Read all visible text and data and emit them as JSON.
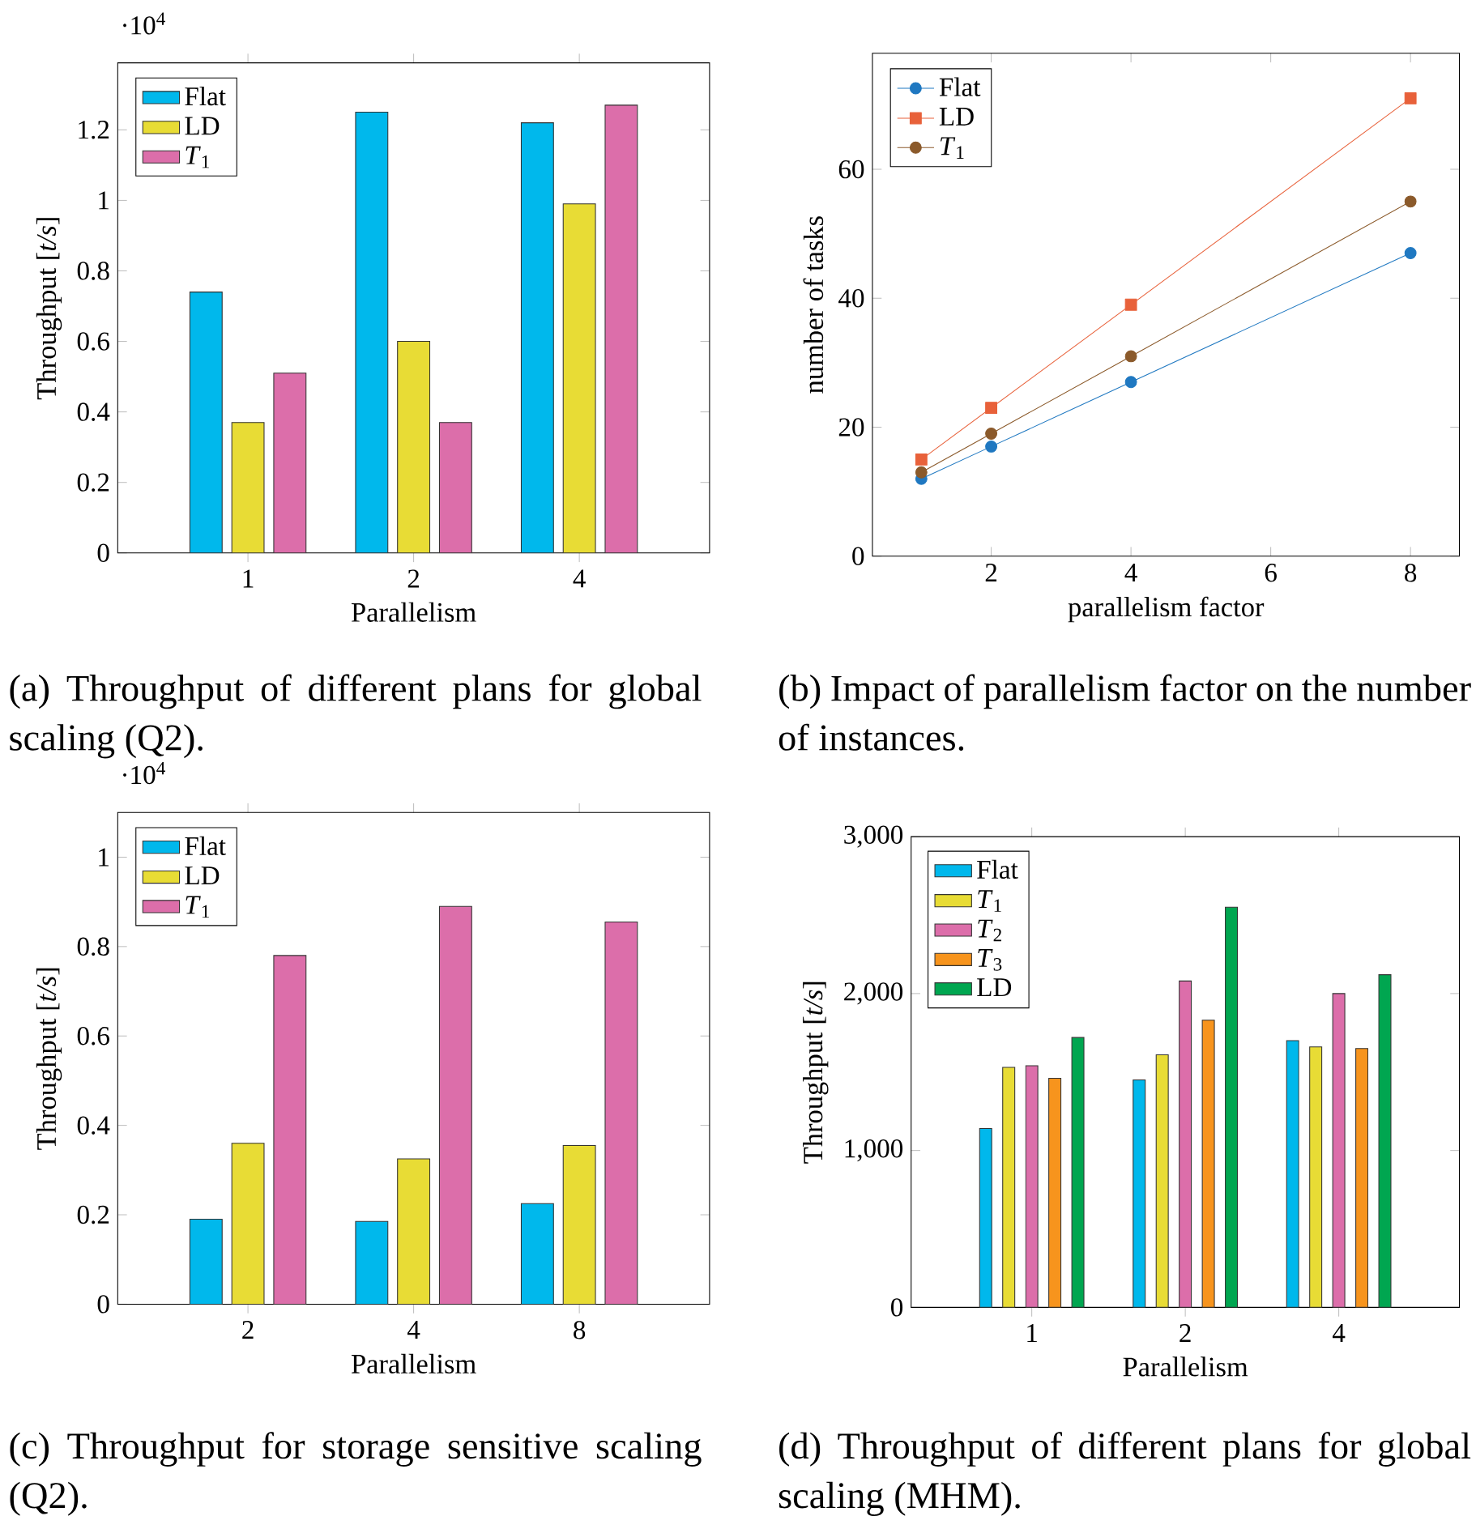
{
  "chart_data": [
    {
      "type": "bar",
      "xlabel": "Parallelism",
      "ylabel": "Throughput [*t/s*]",
      "categories": [
        "1",
        "2",
        "4"
      ],
      "legend": "top left",
      "ylim": [
        0,
        1.39
      ],
      "yticks": [
        0,
        0.2,
        0.4,
        0.6,
        0.8,
        1,
        1.2
      ],
      "annotations": [
        "(a) Throughput of different plans for global scaling (Q2).",
        "·10$^{4}$"
      ],
      "series": [
        {
          "name": "Flat",
          "color": "#00b8ec",
          "values": [
            0.74,
            1.25,
            1.22
          ]
        },
        {
          "name": "LD",
          "color": "#e8dc35",
          "values": [
            0.37,
            0.6,
            0.99
          ]
        },
        {
          "name": "*T*$_{1}$",
          "color": "#dc6eaa",
          "values": [
            0.51,
            0.37,
            1.27
          ]
        }
      ]
    },
    {
      "type": "line",
      "xlabel": "parallelism factor",
      "ylabel": "number of tasks",
      "x": [
        1,
        2,
        4,
        8
      ],
      "legend": "top left",
      "xlim": [
        0.3,
        8.7
      ],
      "xticks": [
        2,
        4,
        6,
        8
      ],
      "ylim": [
        0,
        78
      ],
      "yticks": [
        0,
        20,
        40,
        60
      ],
      "annotations": [
        "(b) Impact of parallelism factor on the number of instances."
      ],
      "series": [
        {
          "name": "Flat",
          "color": "#1f78c1",
          "marker": "circle",
          "values": [
            12,
            17,
            27,
            47
          ]
        },
        {
          "name": "LD",
          "color": "#e8613a",
          "marker": "square",
          "values": [
            15,
            23,
            39,
            71
          ]
        },
        {
          "name": "*T*$_{1}$",
          "color": "#8b5a2b",
          "marker": "circle",
          "values": [
            13,
            19,
            31,
            55
          ]
        }
      ]
    },
    {
      "type": "bar",
      "xlabel": "Parallelism",
      "ylabel": "Throughput [*t/s*]",
      "categories": [
        "2",
        "4",
        "8"
      ],
      "legend": "top left",
      "ylim": [
        0,
        1.1
      ],
      "yticks": [
        0,
        0.2,
        0.4,
        0.6,
        0.8,
        1
      ],
      "annotations": [
        "(c) Throughput for storage sensitive scaling (Q2).",
        "·10$^{4}$"
      ],
      "series": [
        {
          "name": "Flat",
          "color": "#00b8ec",
          "values": [
            0.19,
            0.185,
            0.225
          ]
        },
        {
          "name": "LD",
          "color": "#e8dc35",
          "values": [
            0.36,
            0.325,
            0.355
          ]
        },
        {
          "name": "*T*$_{1}$",
          "color": "#dc6eaa",
          "values": [
            0.78,
            0.89,
            0.855
          ]
        }
      ]
    },
    {
      "type": "bar",
      "xlabel": "Parallelism",
      "ylabel": "Throughput [*t/s*]",
      "categories": [
        "1",
        "2",
        "4"
      ],
      "legend": "top left",
      "ylim": [
        0,
        3000
      ],
      "yticks": [
        0,
        {
          "value": 1000,
          "label": "1,000"
        },
        {
          "value": 2000,
          "label": "2,000"
        },
        {
          "value": 3000,
          "label": "3,000"
        }
      ],
      "annotations": [
        "(d) Throughput of different plans for global scaling (MHM)."
      ],
      "series": [
        {
          "name": "Flat",
          "color": "#00b8ec",
          "values": [
            1140,
            1450,
            1700
          ]
        },
        {
          "name": "*T*$_{1}$",
          "color": "#e8dc35",
          "values": [
            1530,
            1610,
            1660
          ]
        },
        {
          "name": "*T*$_{2}$",
          "color": "#dc6eaa",
          "values": [
            1540,
            2080,
            2000
          ]
        },
        {
          "name": "*T*$_{3}$",
          "color": "#f7941d",
          "values": [
            1460,
            1830,
            1650
          ]
        },
        {
          "name": "LD",
          "color": "#00a650",
          "values": [
            1720,
            2550,
            2120
          ]
        }
      ]
    }
  ]
}
